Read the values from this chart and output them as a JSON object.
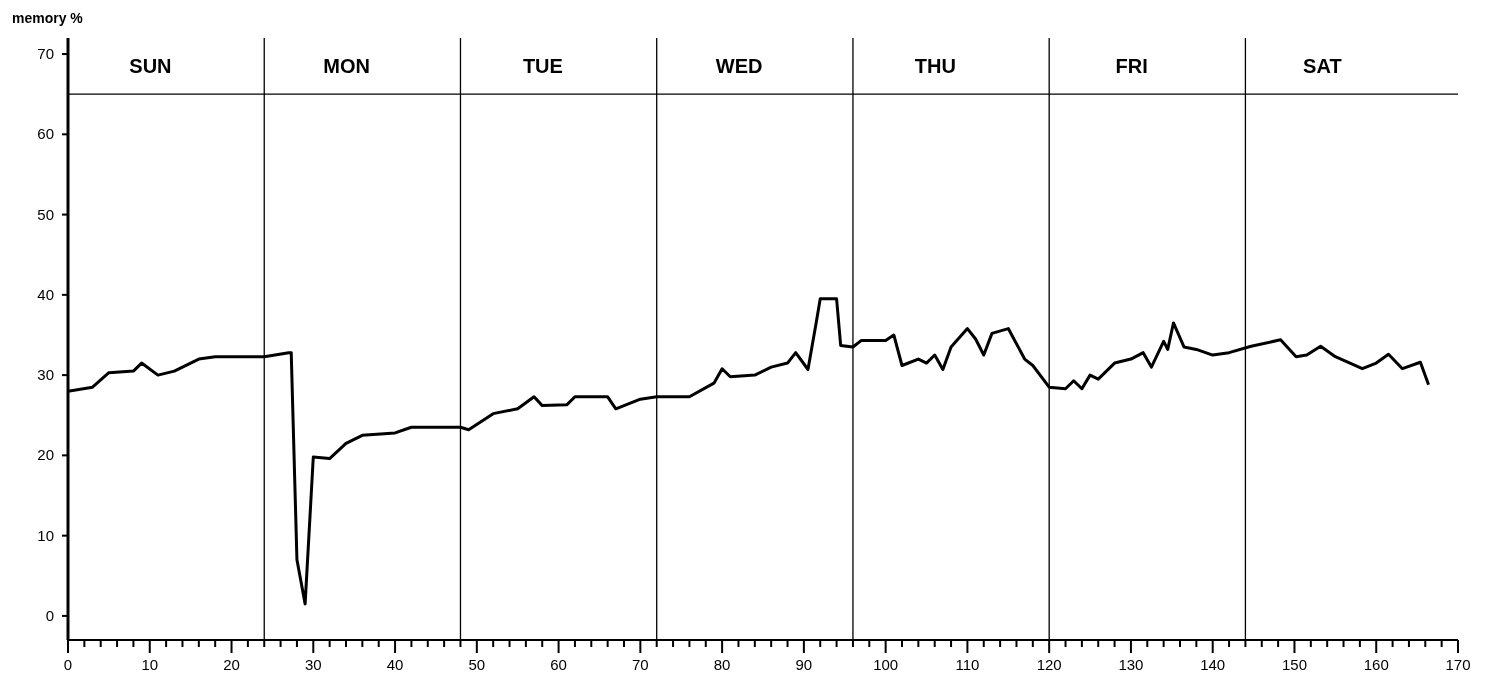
{
  "chart_data": {
    "type": "line",
    "ylabel": "memory %",
    "x": [
      0,
      3,
      5,
      8,
      9,
      11,
      13,
      16,
      18,
      24,
      27,
      27.3,
      28,
      29,
      30,
      32,
      34,
      36,
      40,
      42,
      48,
      49,
      52,
      55,
      57,
      58,
      61,
      62,
      66,
      67,
      70,
      72,
      76,
      79,
      80,
      81,
      84,
      86,
      88,
      89,
      90.5,
      91.5,
      92,
      94,
      94.5,
      96,
      97,
      100,
      101,
      102,
      104,
      105,
      106,
      107,
      108,
      110,
      111,
      112,
      113,
      115,
      117,
      118,
      120,
      122,
      123,
      124,
      125,
      126,
      128,
      130,
      131.5,
      132.5,
      134,
      134.5,
      135.2,
      136.5,
      138,
      140,
      142,
      144.7,
      148.3,
      150.2,
      151.5,
      153.2,
      155,
      158.3,
      160,
      161.5,
      163.2,
      165.4,
      166.4
    ],
    "series": [
      {
        "color": "#000000",
        "values": [
          28,
          28.5,
          30.3,
          30.5,
          31.5,
          30,
          30.5,
          32,
          32.3,
          32.3,
          32.8,
          32.8,
          7,
          1.5,
          19.8,
          19.6,
          21.5,
          22.5,
          22.8,
          23.5,
          23.5,
          23.2,
          25.2,
          25.8,
          27.3,
          26.2,
          26.3,
          27.3,
          27.3,
          25.8,
          27,
          27.3,
          27.3,
          29,
          30.8,
          29.8,
          30,
          31,
          31.5,
          32.8,
          30.7,
          36.5,
          39.5,
          39.5,
          33.7,
          33.5,
          34.3,
          34.3,
          35,
          31.2,
          32,
          31.5,
          32.5,
          30.7,
          33.5,
          35.8,
          34.5,
          32.5,
          35.2,
          35.8,
          32,
          31.2,
          28.5,
          28.3,
          29.3,
          28.3,
          30,
          29.5,
          31.5,
          32,
          32.8,
          31,
          34.2,
          33.2,
          36.5,
          33.5,
          33.2,
          32.5,
          32.8,
          33.6,
          34.4,
          32.3,
          32.5,
          33.6,
          32.3,
          30.8,
          31.5,
          32.6,
          30.8,
          31.6,
          28.8
        ]
      }
    ],
    "xlim": [
      0,
      170
    ],
    "xticks": [
      0,
      {
        "value": 2,
        "label": null
      },
      {
        "value": 4,
        "label": null
      },
      {
        "value": 6,
        "label": null
      },
      {
        "value": 8,
        "label": null
      },
      10,
      {
        "value": 12,
        "label": null
      },
      {
        "value": 14,
        "label": null
      },
      {
        "value": 16,
        "label": null
      },
      {
        "value": 18,
        "label": null
      },
      20,
      {
        "value": 22,
        "label": null
      },
      {
        "value": 24,
        "label": null
      },
      {
        "value": 26,
        "label": null
      },
      {
        "value": 28,
        "label": null
      },
      30,
      {
        "value": 32,
        "label": null
      },
      {
        "value": 34,
        "label": null
      },
      {
        "value": 36,
        "label": null
      },
      {
        "value": 38,
        "label": null
      },
      40,
      {
        "value": 42,
        "label": null
      },
      {
        "value": 44,
        "label": null
      },
      {
        "value": 46,
        "label": null
      },
      {
        "value": 48,
        "label": null
      },
      50,
      {
        "value": 52,
        "label": null
      },
      {
        "value": 54,
        "label": null
      },
      {
        "value": 56,
        "label": null
      },
      {
        "value": 58,
        "label": null
      },
      60,
      {
        "value": 62,
        "label": null
      },
      {
        "value": 64,
        "label": null
      },
      {
        "value": 66,
        "label": null
      },
      {
        "value": 68,
        "label": null
      },
      70,
      {
        "value": 72,
        "label": null
      },
      {
        "value": 74,
        "label": null
      },
      {
        "value": 76,
        "label": null
      },
      {
        "value": 78,
        "label": null
      },
      80,
      {
        "value": 82,
        "label": null
      },
      {
        "value": 84,
        "label": null
      },
      {
        "value": 86,
        "label": null
      },
      {
        "value": 88,
        "label": null
      },
      90,
      {
        "value": 92,
        "label": null
      },
      {
        "value": 94,
        "label": null
      },
      {
        "value": 96,
        "label": null
      },
      {
        "value": 98,
        "label": null
      },
      100,
      {
        "value": 102,
        "label": null
      },
      {
        "value": 104,
        "label": null
      },
      {
        "value": 106,
        "label": null
      },
      {
        "value": 108,
        "label": null
      },
      110,
      {
        "value": 112,
        "label": null
      },
      {
        "value": 114,
        "label": null
      },
      {
        "value": 116,
        "label": null
      },
      {
        "value": 118,
        "label": null
      },
      120,
      {
        "value": 122,
        "label": null
      },
      {
        "value": 124,
        "label": null
      },
      {
        "value": 126,
        "label": null
      },
      {
        "value": 128,
        "label": null
      },
      130,
      {
        "value": 132,
        "label": null
      },
      {
        "value": 134,
        "label": null
      },
      {
        "value": 136,
        "label": null
      },
      {
        "value": 138,
        "label": null
      },
      140,
      {
        "value": 142,
        "label": null
      },
      {
        "value": 144,
        "label": null
      },
      {
        "value": 146,
        "label": null
      },
      {
        "value": 148,
        "label": null
      },
      150,
      {
        "value": 152,
        "label": null
      },
      {
        "value": 154,
        "label": null
      },
      {
        "value": 156,
        "label": null
      },
      {
        "value": 158,
        "label": null
      },
      160,
      {
        "value": 162,
        "label": null
      },
      {
        "value": 164,
        "label": null
      },
      {
        "value": 166,
        "label": null
      },
      {
        "value": 168,
        "label": null
      },
      170
    ],
    "ylim": [
      -3,
      72
    ],
    "yticks": [
      0,
      10,
      20,
      30,
      40,
      50,
      60,
      70
    ],
    "grid": false,
    "legend": false,
    "marker": "none",
    "line_style": "solid",
    "ref_lines": [
      {
        "axis": "x",
        "value": 24,
        "label": null
      },
      {
        "axis": "x",
        "value": 48,
        "label": null
      },
      {
        "axis": "x",
        "value": 72,
        "label": null
      },
      {
        "axis": "x",
        "value": 96,
        "label": null
      },
      {
        "axis": "x",
        "value": 120,
        "label": null
      },
      {
        "axis": "x",
        "value": 144,
        "label": null
      },
      {
        "axis": "y",
        "value": 65,
        "label": null
      }
    ],
    "annotations": [
      "SUN",
      "MON",
      "TUE",
      "WED",
      "THU",
      "FRI",
      "SAT"
    ]
  }
}
